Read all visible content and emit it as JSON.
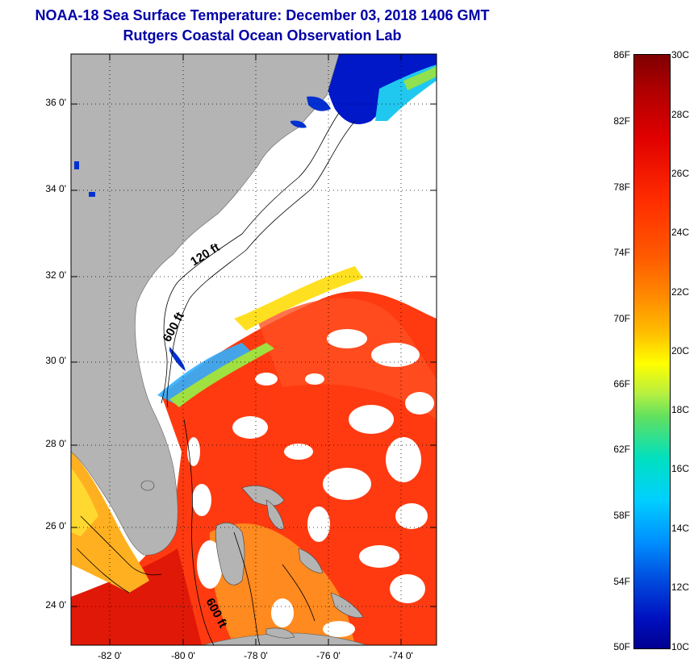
{
  "title_line1": "NOAA-18 Sea Surface Temperature:  December 03, 2018 1406 GMT",
  "title_line2": "Rutgers Coastal Ocean Observation Lab",
  "lat_labels": [
    "36 0'",
    "34 0'",
    "32 0'",
    "30 0'",
    "28 0'",
    "26 0'",
    "24 0'"
  ],
  "lon_labels": [
    "-82 0'",
    "-80 0'",
    "-78 0'",
    "-76 0'",
    "-74 0'"
  ],
  "contour_labels": [
    "120 ft",
    "600 ft",
    "600 ft"
  ],
  "colorbar": {
    "fahrenheit": [
      "86F",
      "82F",
      "78F",
      "74F",
      "70F",
      "66F",
      "62F",
      "58F",
      "54F",
      "50F"
    ],
    "celsius": [
      "30C",
      "28C",
      "26C",
      "24C",
      "22C",
      "20C",
      "18C",
      "16C",
      "14C",
      "12C",
      "10C"
    ]
  },
  "colors": {
    "land": "#b4b4b4",
    "no_data": "#ffffff",
    "title": "#0000a8",
    "warm": "#ff3a10",
    "cold": "#0018c8"
  }
}
